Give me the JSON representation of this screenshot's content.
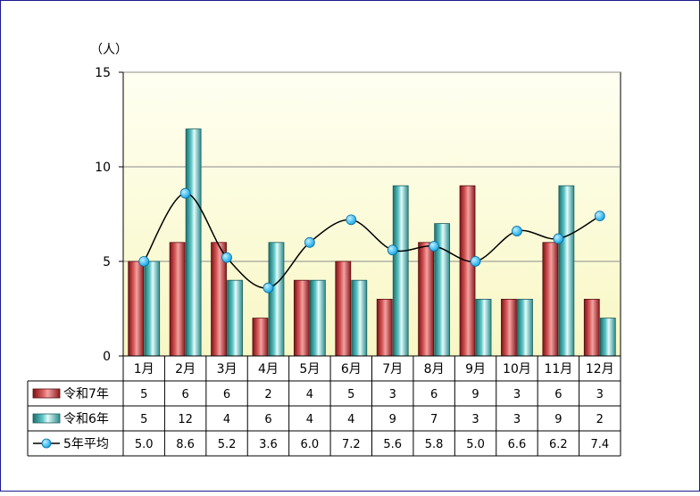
{
  "chart_data": {
    "type": "bar",
    "title": "",
    "xlabel": "",
    "ylabel": "（人）",
    "ylim": [
      0,
      15
    ],
    "yticks": [
      0,
      5,
      10,
      15
    ],
    "grid": true,
    "categories": [
      "1月",
      "2月",
      "3月",
      "4月",
      "5月",
      "6月",
      "7月",
      "8月",
      "9月",
      "10月",
      "11月",
      "12月"
    ],
    "series": [
      {
        "name": "令和7年",
        "kind": "bar",
        "color": "#c0393b",
        "values": [
          5,
          6,
          6,
          2,
          4,
          5,
          3,
          6,
          9,
          3,
          6,
          3
        ],
        "labels": [
          "5",
          "6",
          "6",
          "2",
          "4",
          "5",
          "3",
          "6",
          "9",
          "3",
          "6",
          "3"
        ]
      },
      {
        "name": "令和6年",
        "kind": "bar",
        "color": "#3fa8a8",
        "values": [
          5,
          12,
          4,
          6,
          4,
          4,
          9,
          7,
          3,
          3,
          9,
          2
        ],
        "labels": [
          "5",
          "12",
          "4",
          "6",
          "4",
          "4",
          "9",
          "7",
          "3",
          "3",
          "9",
          "2"
        ]
      },
      {
        "name": "5年平均",
        "kind": "line",
        "color": "#000000",
        "marker_color": "#1ab4f0",
        "values": [
          5.0,
          8.6,
          5.2,
          3.6,
          6.0,
          7.2,
          5.6,
          5.8,
          5.0,
          6.6,
          6.2,
          7.4
        ],
        "labels": [
          "5.0",
          "8.6",
          "5.2",
          "3.6",
          "6.0",
          "7.2",
          "5.6",
          "5.8",
          "5.0",
          "6.6",
          "6.2",
          "7.4"
        ]
      }
    ],
    "plot_background": [
      "#fffff2",
      "#f8f7c4"
    ],
    "legend": "data-table-left"
  }
}
